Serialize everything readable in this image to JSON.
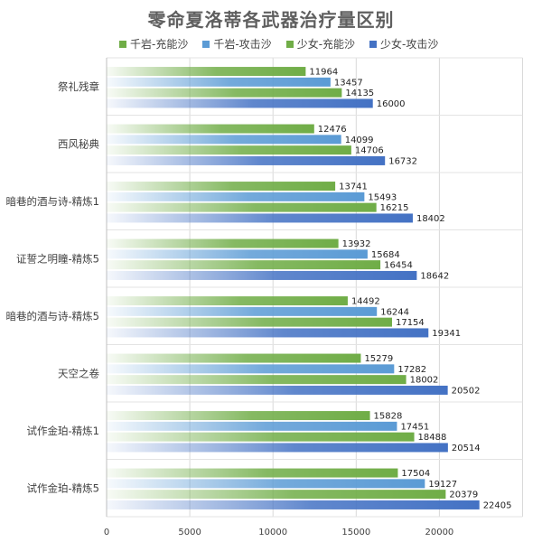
{
  "chart_data": {
    "type": "bar",
    "orientation": "horizontal",
    "title": "零命夏洛蒂各武器治疗量区别",
    "xlabel": "",
    "ylabel": "",
    "xlim": [
      0,
      22405
    ],
    "x_ticks": [
      "0",
      "5000",
      "10000",
      "15000",
      "20000"
    ],
    "grid": true,
    "legend_position": "top",
    "categories": [
      "祭礼残章",
      "西风秘典",
      "暗巷的酒与诗-精炼1",
      "证誓之明瞳-精炼5",
      "暗巷的酒与诗-精炼5",
      "天空之卷",
      "试作金珀-精炼1",
      "试作金珀-精炼5"
    ],
    "series": [
      {
        "name": "千岩-充能沙",
        "color": "#70ad47",
        "values": [
          11964,
          12476,
          13741,
          13932,
          14492,
          15279,
          15828,
          17504
        ]
      },
      {
        "name": "千岩-攻击沙",
        "color": "#5b9bd5",
        "values": [
          13457,
          14099,
          15493,
          15684,
          16244,
          17282,
          17451,
          19127
        ]
      },
      {
        "name": "少女-充能沙",
        "color": "#70ad47",
        "values": [
          14135,
          14706,
          16215,
          16454,
          17154,
          18002,
          18488,
          20379
        ]
      },
      {
        "name": "少女-攻击沙",
        "color": "#4472c4",
        "values": [
          16000,
          16732,
          18402,
          18642,
          19341,
          20502,
          20514,
          22405
        ]
      }
    ]
  }
}
